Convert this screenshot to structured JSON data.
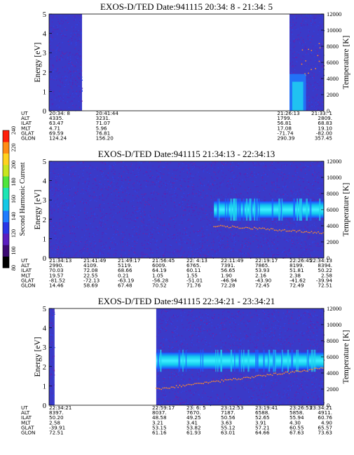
{
  "colorbar": {
    "label": "Second Harmonic Current",
    "ticks": [
      "80",
      "100",
      "120",
      "140",
      "160",
      "180",
      "200",
      "220",
      "240"
    ],
    "colors": [
      "#000000",
      "#3c0a73",
      "#5a1ec0",
      "#2b36e6",
      "#1e7cff",
      "#14c8e6",
      "#1ee6b4",
      "#50e63c",
      "#c8e61e",
      "#ffd21e",
      "#ff8c14",
      "#ff1e0a"
    ]
  },
  "chart_data": [
    {
      "type": "heatmap",
      "title": "EXOS-D/TED   Date:941115  20:34: 8 - 21:34: 5",
      "ylabel": "Energy [eV]",
      "ylabel_right": "Temperature [K]",
      "ylim": [
        0,
        5
      ],
      "ylim_right": [
        0,
        12000
      ],
      "yticks": [
        "0",
        "1",
        "2",
        "3",
        "4",
        "5"
      ],
      "yticks_right": [
        "0",
        "2000",
        "4000",
        "6000",
        "8000",
        "10000",
        "12000"
      ],
      "data_segments": [
        {
          "x0": 0.0,
          "x1": 0.12
        },
        {
          "x0": 0.875,
          "x1": 1.0
        }
      ],
      "band": null,
      "ephemeris": {
        "rows": [
          "UT",
          "ALT",
          "ILAT",
          "MLT",
          "GLAT",
          "GLON"
        ],
        "columns": [
          {
            "pos": 0.0,
            "vals": [
              "20:34: 8",
              "4335.",
              "63.47",
              "4.71",
              "69.59",
              "124.24"
            ]
          },
          {
            "pos": 0.17,
            "vals": [
              "20:41:44",
              "3231.",
              "71.07",
              "5.96",
              "76.81",
              "156.20"
            ]
          },
          {
            "pos": 0.83,
            "vals": [
              "21:26:13",
              "1799.",
              "56.81",
              "17.08",
              "-71.74",
              "290.39"
            ]
          },
          {
            "pos": 1.0,
            "vals": [
              "21:33: 1",
              "2809.",
              "68.83",
              "19.10",
              "-82.00",
              "357.45"
            ]
          }
        ]
      }
    },
    {
      "type": "heatmap",
      "title": "EXOS-D/TED   Date:941115  21:34:13 - 22:34:13",
      "ylabel": "Energy [eV]",
      "ylabel_right": "Temperature [K]",
      "ylim": [
        0,
        5
      ],
      "ylim_right": [
        0,
        12000
      ],
      "yticks": [
        "0",
        "1",
        "2",
        "3",
        "4",
        "5"
      ],
      "yticks_right": [
        "0",
        "2000",
        "4000",
        "6000",
        "8000",
        "10000",
        "12000"
      ],
      "data_segments": [
        {
          "x0": 0.0,
          "x1": 1.0
        }
      ],
      "band": {
        "x_start": 0.6,
        "energy": 2.5,
        "temperature_start": 4000,
        "temperature_end": 3100
      },
      "ephemeris": {
        "rows": [
          "UT",
          "ALT",
          "ILAT",
          "MLT",
          "GLAT",
          "GLON"
        ],
        "columns": [
          {
            "pos": 0.0,
            "vals": [
              "21:34:13",
              "2990.",
              "70.03",
              "19.57",
              "-81.52",
              "14.46"
            ]
          },
          {
            "pos": 0.125,
            "vals": [
              "21:41:49",
              "4109.",
              "72.08",
              "22.55",
              "-72.13",
              "58.69"
            ]
          },
          {
            "pos": 0.25,
            "vals": [
              "21:49:17",
              "5119.",
              "68.66",
              "0.21",
              "-63.19",
              "67.48"
            ]
          },
          {
            "pos": 0.375,
            "vals": [
              "21:56:45",
              "6009.",
              "64.19",
              "1.05",
              "-56.28",
              "70.52"
            ]
          },
          {
            "pos": 0.5,
            "vals": [
              "22: 4:13",
              "6765.",
              "60.11",
              "1.55",
              "-51.01",
              "71.76"
            ]
          },
          {
            "pos": 0.625,
            "vals": [
              "22:11:49",
              "7391.",
              "56.65",
              "1.90",
              "-46.94",
              "72.28"
            ]
          },
          {
            "pos": 0.75,
            "vals": [
              "22:19:17",
              "7865.",
              "53.93",
              "2.16",
              "-43.90",
              "72.45"
            ]
          },
          {
            "pos": 0.875,
            "vals": [
              "22:26:45",
              "8199.",
              "51.81",
              "2.38",
              "-41.62",
              "72.49"
            ]
          },
          {
            "pos": 1.0,
            "vals": [
              "22:34:13",
              "8394.",
              "50.22",
              "2.58",
              "-39.94",
              "72.51"
            ]
          }
        ]
      }
    },
    {
      "type": "heatmap",
      "title": "EXOS-D/TED   Date:941115  22:34:21 - 23:34:21",
      "ylabel": "Energy [eV]",
      "ylabel_right": "Temperature [K]",
      "ylim": [
        0,
        5
      ],
      "ylim_right": [
        0,
        12000
      ],
      "yticks": [
        "0",
        "1",
        "2",
        "3",
        "4",
        "5"
      ],
      "yticks_right": [
        "0",
        "2000",
        "4000",
        "6000",
        "8000",
        "10000",
        "12000"
      ],
      "data_segments": [
        {
          "x0": 0.0,
          "x1": 0.02
        },
        {
          "x0": 0.39,
          "x1": 1.0
        }
      ],
      "band": {
        "x_start": 0.39,
        "energy": 2.3,
        "temperature_start": 2000,
        "temperature_end": 4600
      },
      "ephemeris": {
        "rows": [
          "UT",
          "ALT",
          "ILAT",
          "MLT",
          "GLAT",
          "GLON"
        ],
        "columns": [
          {
            "pos": 0.0,
            "vals": [
              "22:34:21",
              "8397.",
              "50.20",
              "2.58",
              "-39.91",
              "72.51"
            ]
          },
          {
            "pos": 0.375,
            "vals": [
              "22:59:17",
              "8037.",
              "48.58",
              "3.21",
              "53.15",
              "61.16"
            ]
          },
          {
            "pos": 0.5,
            "vals": [
              "23: 6: 5",
              "7670.",
              "49.25",
              "3.41",
              "53.82",
              "61.93"
            ]
          },
          {
            "pos": 0.625,
            "vals": [
              "23:12:53",
              "7187.",
              "50.56",
              "3.63",
              "55.12",
              "63.01"
            ]
          },
          {
            "pos": 0.75,
            "vals": [
              "23:19:41",
              "6588.",
              "52.65",
              "3.91",
              "57.21",
              "64.66"
            ]
          },
          {
            "pos": 0.875,
            "vals": [
              "23:26:53",
              "5858.",
              "55.94",
              "4.30",
              "60.55",
              "67.63"
            ]
          },
          {
            "pos": 1.0,
            "vals": [
              "23:34:21",
              "4911.",
              "60.76",
              "4.90",
              "65.57",
              "73.63"
            ]
          }
        ]
      }
    }
  ]
}
